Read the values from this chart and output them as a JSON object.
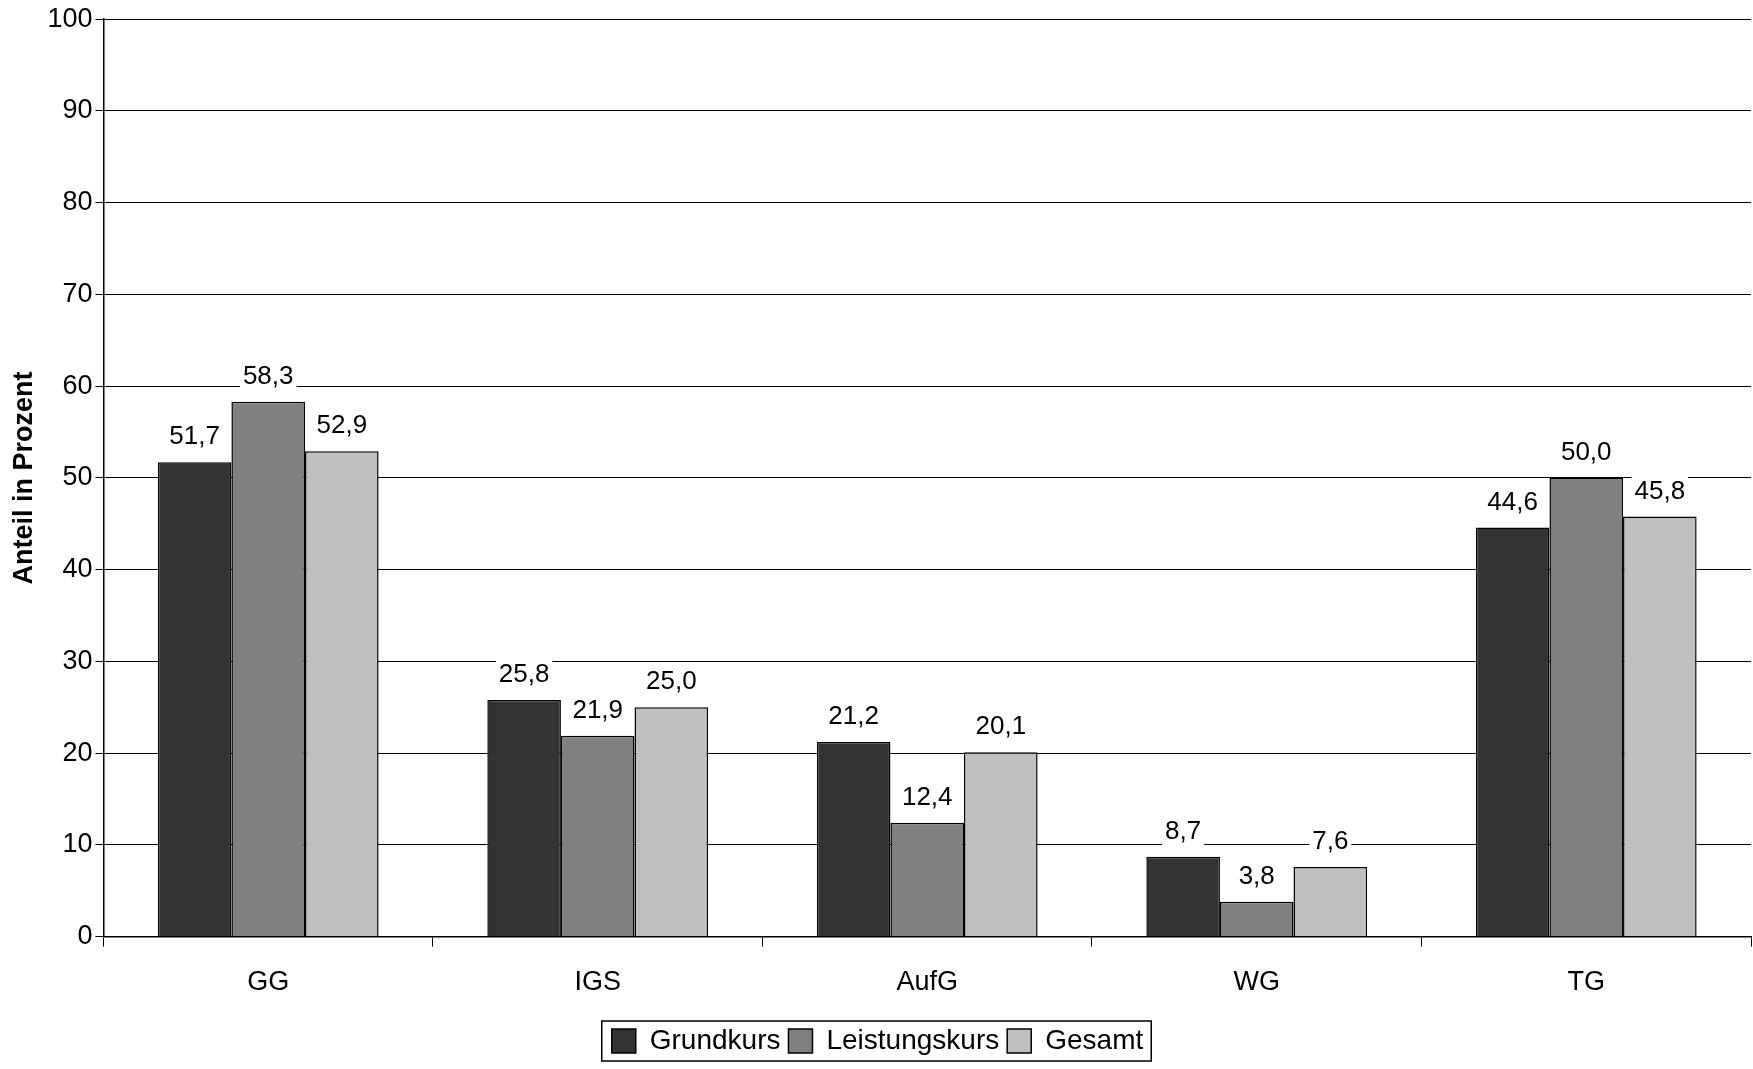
{
  "chart_data": {
    "type": "bar",
    "ylabel": "Anteil in Prozent",
    "categories": [
      "GG",
      "IGS",
      "AufG",
      "WG",
      "TG"
    ],
    "series": [
      {
        "name": "Grundkurs",
        "color": "#333333",
        "values": [
          51.7,
          25.8,
          21.2,
          8.7,
          44.6
        ],
        "value_labels": [
          "51,7",
          "25,8",
          "21,2",
          "8,7",
          "44,6"
        ]
      },
      {
        "name": "Leistungskurs",
        "color": "#808080",
        "values": [
          58.3,
          21.9,
          12.4,
          3.8,
          50.0
        ],
        "value_labels": [
          "58,3",
          "21,9",
          "12,4",
          "3,8",
          "50,0"
        ]
      },
      {
        "name": "Gesamt",
        "color": "#c0c0c0",
        "values": [
          52.9,
          25.0,
          20.1,
          7.6,
          45.8
        ],
        "value_labels": [
          "52,9",
          "25,0",
          "20,1",
          "7,6",
          "45,8"
        ]
      }
    ],
    "ylim": [
      0,
      100
    ],
    "yticks": [
      0,
      10,
      20,
      30,
      40,
      50,
      60,
      70,
      80,
      90,
      100
    ],
    "grid": "y",
    "legend": "bottom"
  }
}
